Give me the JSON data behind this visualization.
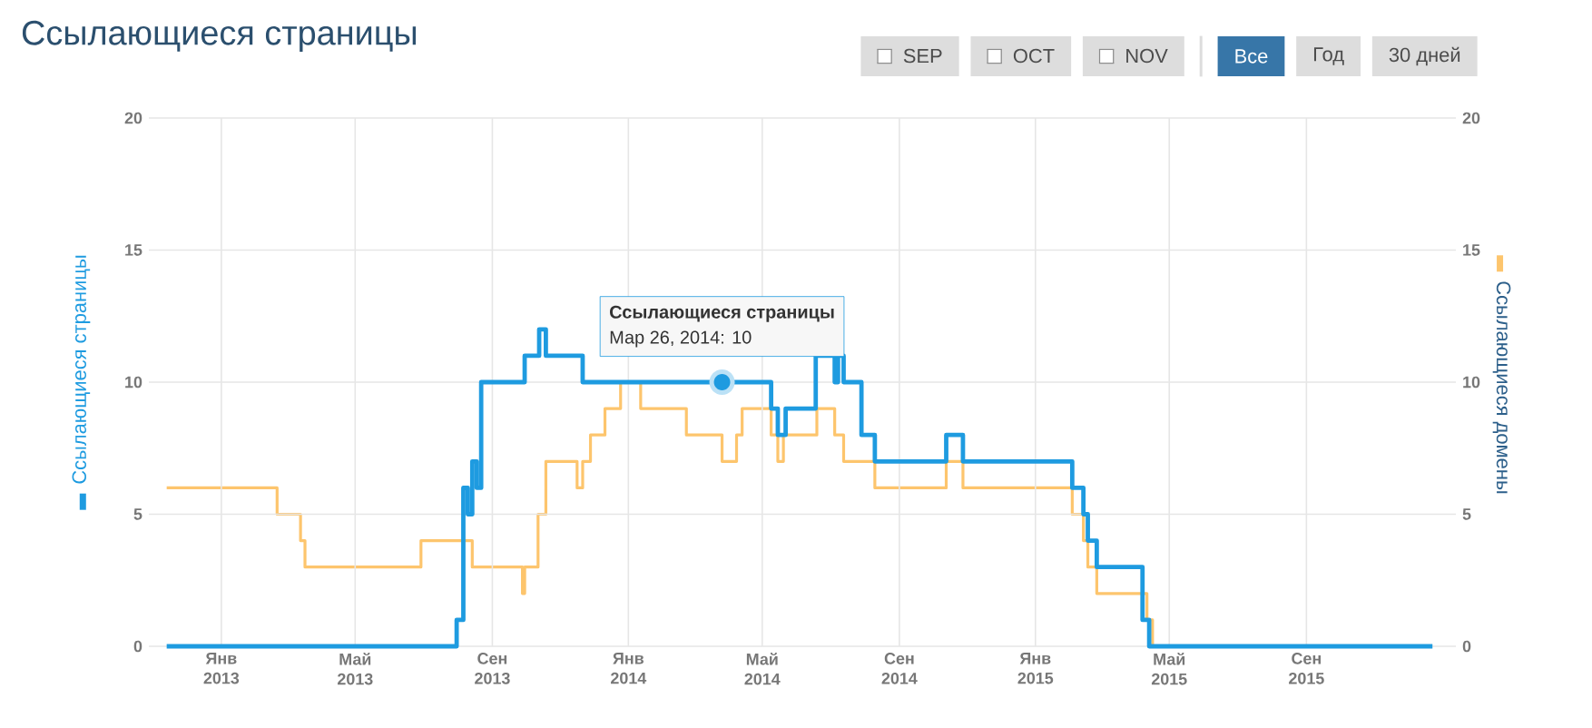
{
  "chart_data": {
    "type": "step",
    "title": "Ссылающиеся страницы",
    "ylabel": "Ссылающиеся страницы",
    "y2label": "Ссылающиеся домены",
    "annotations": [
      "Ссылающиеся страницы",
      {
        "text": "Мар 26, 2014: 10",
        "x": "2014-03-26",
        "y": 10
      },
      "SEP",
      "OCT",
      "NOV",
      "Все",
      "Год",
      "30 дней"
    ],
    "xlim": [
      "2012-10-28",
      "2016-01-13"
    ],
    "xticks": [
      {
        "value": "2013-01-01",
        "label": "Янв 2013"
      },
      {
        "value": "2013-05-01",
        "label": "Май 2013"
      },
      {
        "value": "2013-09-01",
        "label": "Сен 2013"
      },
      {
        "value": "2014-01-01",
        "label": "Янв 2014"
      },
      {
        "value": "2014-05-01",
        "label": "Май 2014"
      },
      {
        "value": "2014-09-01",
        "label": "Сен 2014"
      },
      {
        "value": "2015-01-01",
        "label": "Янв 2015"
      },
      {
        "value": "2015-05-01",
        "label": "Май 2015"
      },
      {
        "value": "2015-09-01",
        "label": "Сен 2015"
      }
    ],
    "ylim": [
      0,
      20
    ],
    "yticks": [
      0,
      5,
      10,
      15,
      20
    ],
    "y2lim": [
      0,
      20
    ],
    "y2ticks": [
      0,
      5,
      10,
      15,
      20
    ],
    "grid": true,
    "series": [
      {
        "color": "#1e9be0",
        "axis": "y",
        "x": [
          "2012-11-13",
          "2013-07-31",
          "2013-08-06",
          "2013-08-10",
          "2013-08-14",
          "2013-08-18",
          "2013-08-22",
          "2013-09-30",
          "2013-10-13",
          "2013-10-19",
          "2013-11-21",
          "2014-05-09",
          "2014-05-15",
          "2014-05-22",
          "2014-06-18",
          "2014-07-05",
          "2014-07-08",
          "2014-07-13",
          "2014-07-29",
          "2014-08-10",
          "2014-10-13",
          "2014-10-28",
          "2015-02-03",
          "2015-02-13",
          "2015-02-17",
          "2015-02-25",
          "2015-04-07",
          "2015-04-13",
          "2015-12-23"
        ],
        "values": [
          0,
          1,
          6,
          5,
          7,
          6,
          10,
          11,
          12,
          11,
          10,
          9,
          8,
          9,
          11,
          10,
          11,
          10,
          8,
          7,
          8,
          7,
          6,
          5,
          4,
          3,
          1,
          0,
          0
        ]
      },
      {
        "color": "#fdc56d",
        "axis": "y2",
        "x": [
          "2012-11-13",
          "2013-02-20",
          "2013-03-13",
          "2013-03-17",
          "2013-06-29",
          "2013-08-14",
          "2013-09-28",
          "2013-09-30",
          "2013-10-12",
          "2013-10-19",
          "2013-11-16",
          "2013-11-21",
          "2013-11-28",
          "2013-12-11",
          "2013-12-25",
          "2014-01-12",
          "2014-02-22",
          "2014-03-26",
          "2014-04-08",
          "2014-04-13",
          "2014-05-09",
          "2014-05-15",
          "2014-05-20",
          "2014-06-19",
          "2014-07-05",
          "2014-07-13",
          "2014-08-10",
          "2014-10-13",
          "2014-10-28",
          "2015-02-03",
          "2015-02-13",
          "2015-02-17",
          "2015-02-25",
          "2015-04-11",
          "2015-04-16",
          "2015-12-23"
        ],
        "values": [
          6,
          5,
          4,
          3,
          4,
          3,
          2,
          3,
          5,
          7,
          6,
          7,
          8,
          9,
          10,
          9,
          8,
          7,
          8,
          9,
          8,
          7,
          8,
          9,
          8,
          7,
          6,
          7,
          6,
          5,
          4,
          3,
          2,
          1,
          0,
          0
        ]
      }
    ]
  }
}
